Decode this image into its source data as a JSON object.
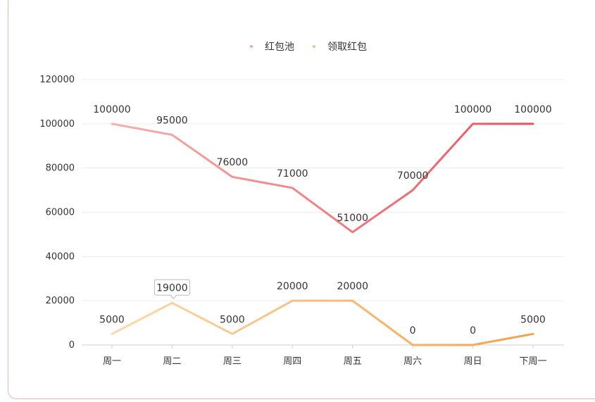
{
  "chart_data": {
    "type": "line",
    "title": "",
    "xlabel": "",
    "ylabel": "",
    "categories": [
      "周一",
      "周二",
      "周三",
      "周四",
      "周五",
      "周六",
      "周日",
      "下周一"
    ],
    "ylim": [
      0,
      120000
    ],
    "yticks": [
      "0",
      "20000",
      "40000",
      "60000",
      "80000",
      "100000",
      "120000"
    ],
    "grid": true,
    "legend_position": "top",
    "series": [
      {
        "name": "红包池",
        "values": [
          100000,
          95000,
          76000,
          71000,
          51000,
          70000,
          100000,
          100000
        ],
        "labels": [
          "100000",
          "95000",
          "76000",
          "71000",
          "51000",
          "70000",
          "100000",
          "100000"
        ],
        "color_start": "#f6b0ae",
        "color_end": "#ee4f5a"
      },
      {
        "name": "领取红包",
        "values": [
          5000,
          19000,
          5000,
          20000,
          20000,
          0,
          0,
          5000
        ],
        "labels": [
          "5000",
          "19000",
          "5000",
          "20000",
          "20000",
          "0",
          "0",
          "5000"
        ],
        "color_start": "#fbd9ab",
        "color_end": "#f6a04a"
      }
    ],
    "highlighted_label": "19000"
  }
}
